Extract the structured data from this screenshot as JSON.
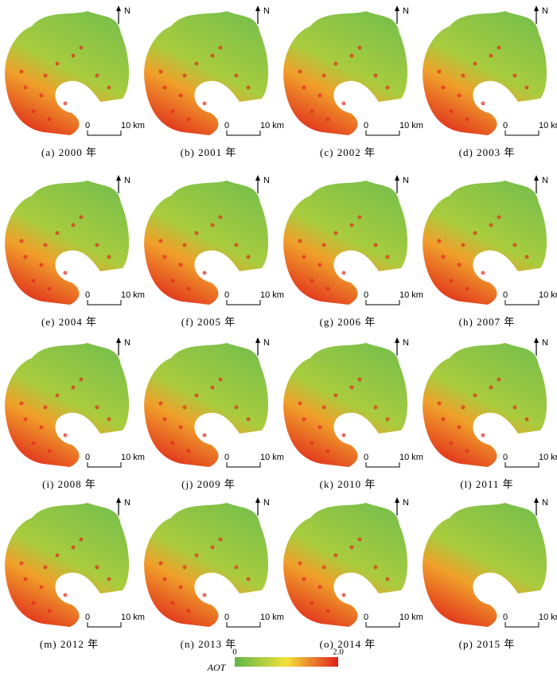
{
  "panels": [
    {
      "label": "(a) 2000 年"
    },
    {
      "label": "(b) 2001 年"
    },
    {
      "label": "(c) 2002 年"
    },
    {
      "label": "(d) 2003 年"
    },
    {
      "label": "(e) 2004 年"
    },
    {
      "label": "(f) 2005 年"
    },
    {
      "label": "(g) 2006 年"
    },
    {
      "label": "(h) 2007 年"
    },
    {
      "label": "(i) 2008 年"
    },
    {
      "label": "(j) 2009 年"
    },
    {
      "label": "(k) 2010 年"
    },
    {
      "label": "(l) 2011 年"
    },
    {
      "label": "(m) 2012 年"
    },
    {
      "label": "(n) 2013 年"
    },
    {
      "label": "(o) 2014 年"
    },
    {
      "label": "(p) 2015 年"
    }
  ],
  "north": "N",
  "scale_bar": {
    "start": "0",
    "end": "10 km"
  },
  "legend": {
    "title": "AOT",
    "min": "0",
    "max": "2.0"
  }
}
